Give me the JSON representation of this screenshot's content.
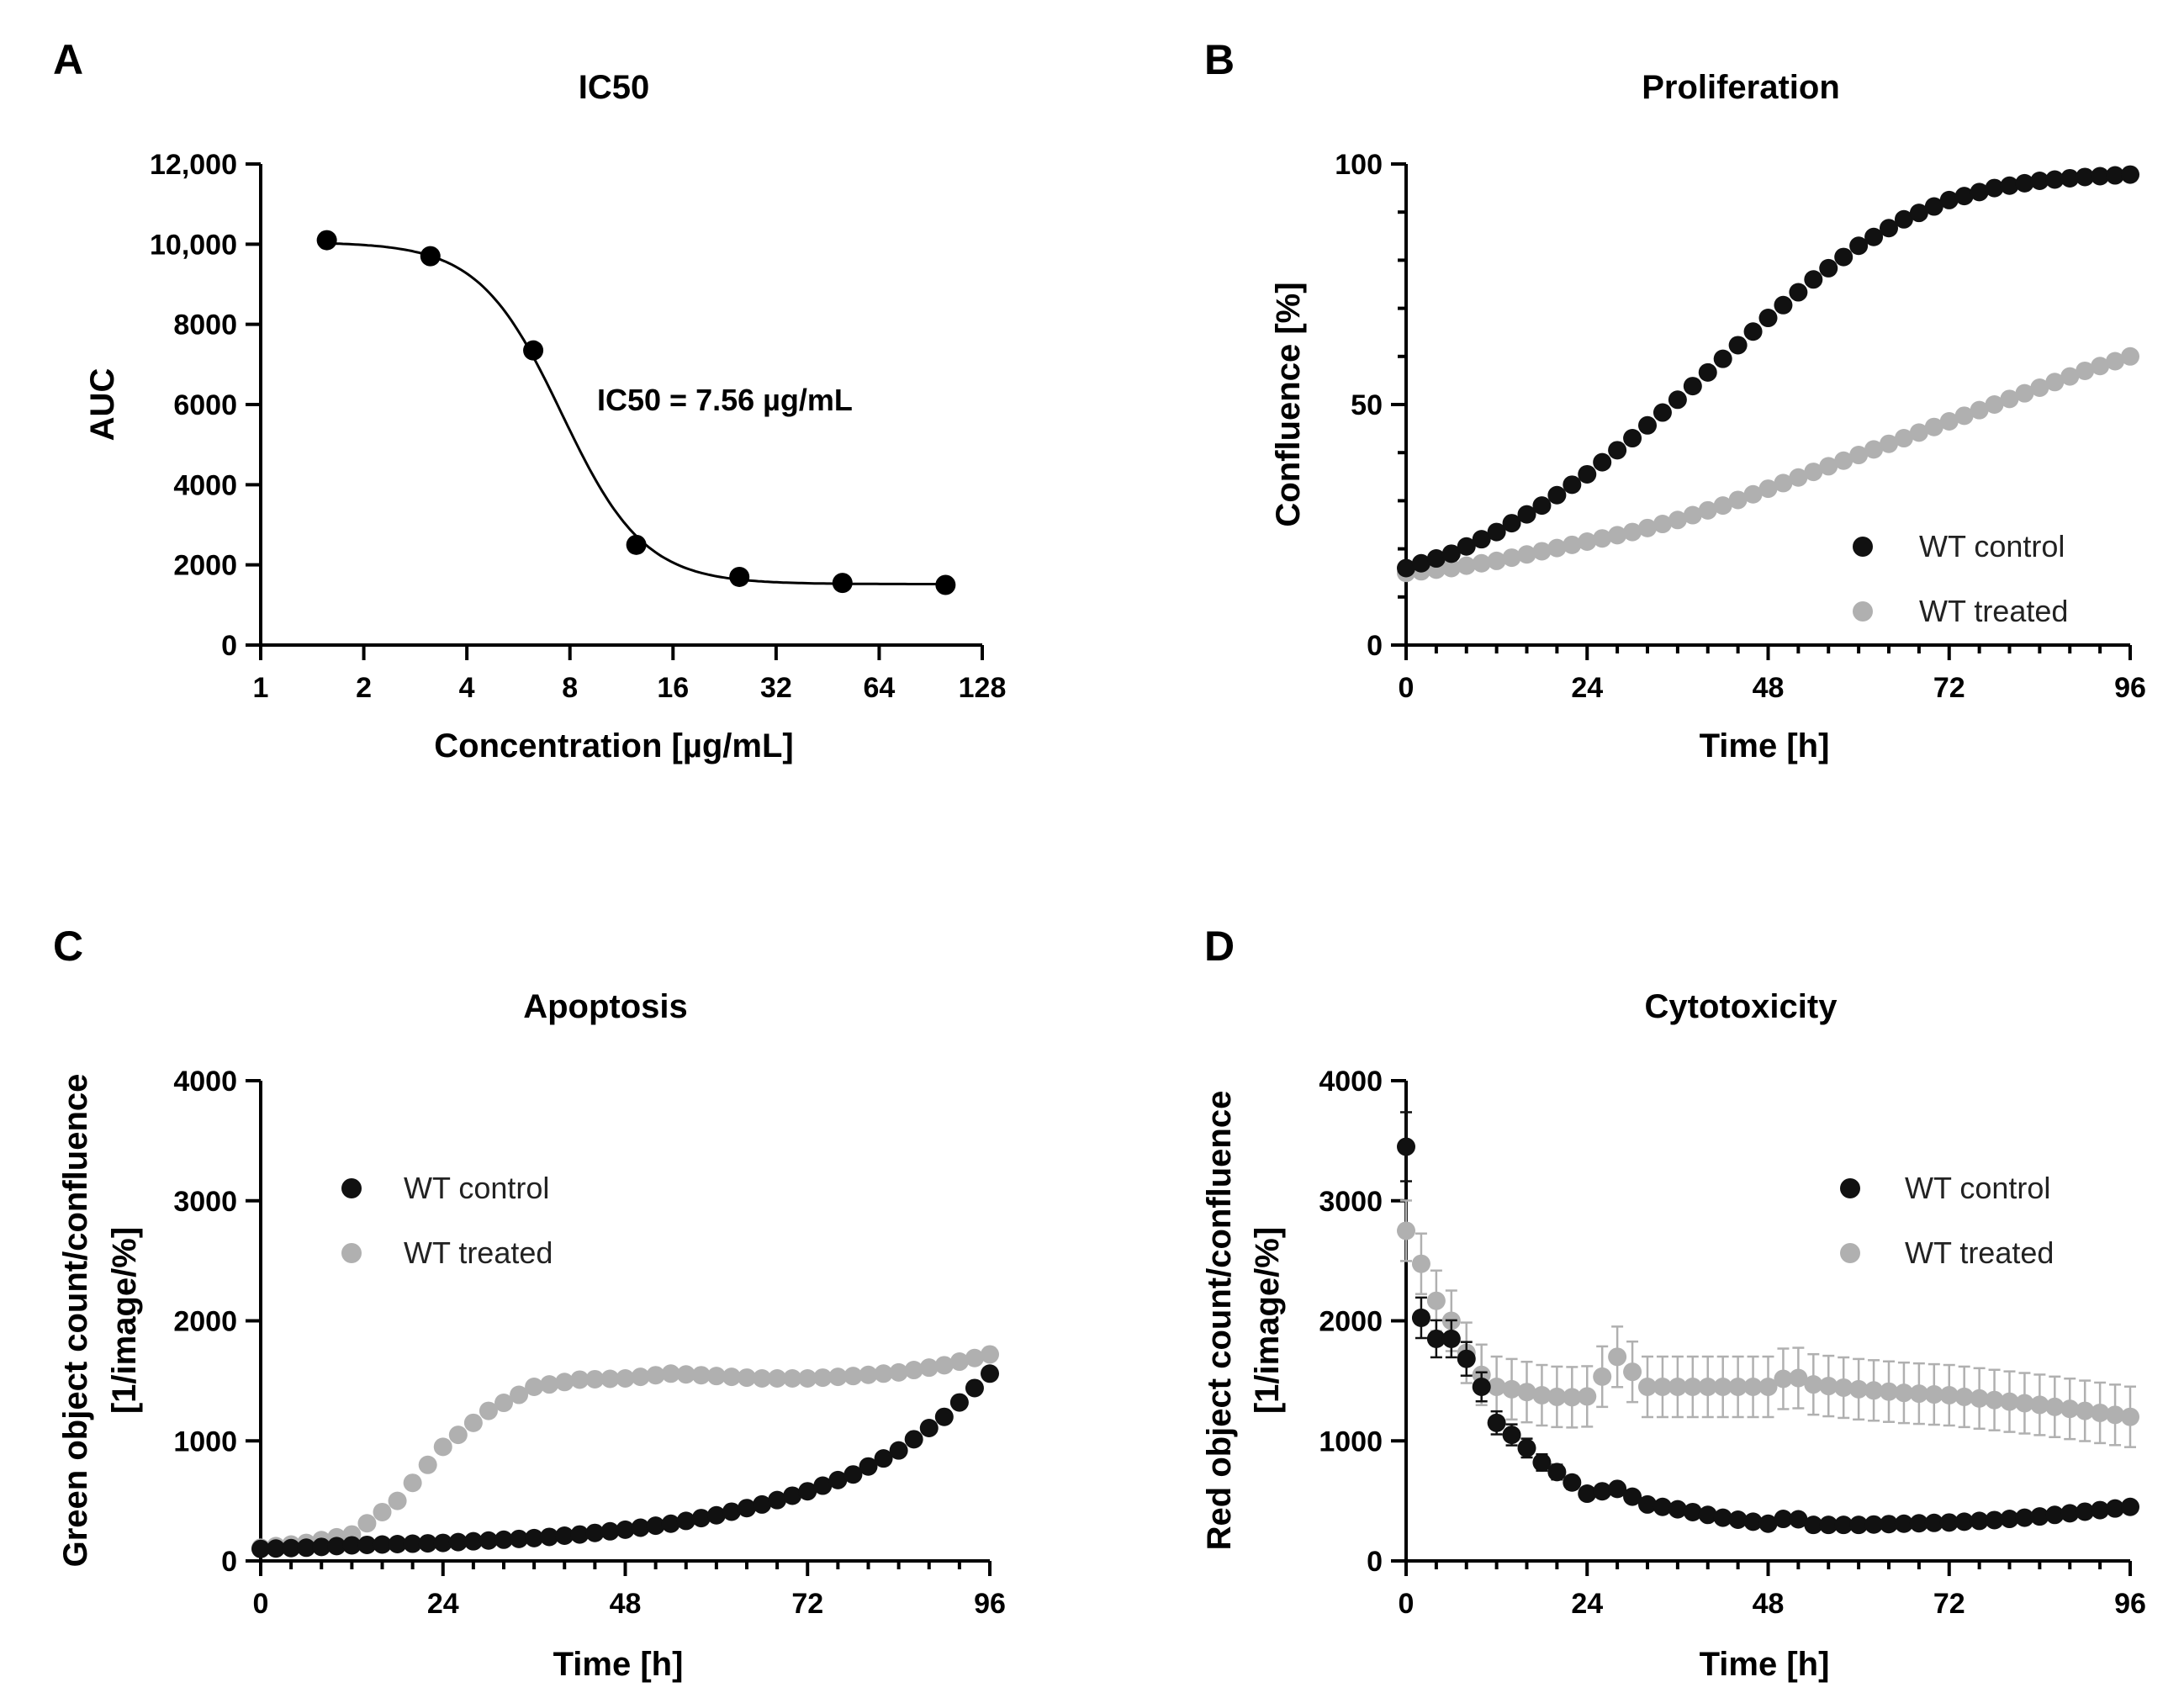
{
  "chart_data": [
    {
      "id": "A",
      "type": "scatter",
      "panel_label": "A",
      "title": "IC50",
      "xlabel": "Concentration [µg/mL]",
      "ylabel": "AUC",
      "xscale": "log2",
      "xlim": [
        1,
        128
      ],
      "ylim": [
        0,
        12000
      ],
      "xticks": [
        1,
        2,
        4,
        8,
        16,
        32,
        64,
        128
      ],
      "xtick_labels": [
        "1",
        "2",
        "4",
        "8",
        "16",
        "32",
        "64",
        "128"
      ],
      "yticks": [
        0,
        2000,
        4000,
        6000,
        8000,
        10000,
        12000
      ],
      "ytick_labels": [
        "0",
        "2000",
        "4000",
        "6000",
        "8000",
        "10,000",
        "12,000"
      ],
      "annotation": "IC50 = 7.56 µg/mL",
      "points": {
        "x": [
          1.56,
          3.13,
          6.25,
          12.5,
          25,
          50,
          100
        ],
        "y": [
          10100,
          9700,
          7350,
          2500,
          1700,
          1550,
          1500
        ]
      },
      "fit": {
        "model": "4PL",
        "top": 10050,
        "bottom": 1520,
        "ic50": 7.56,
        "hill": 3.6
      }
    },
    {
      "id": "B",
      "type": "scatter",
      "panel_label": "B",
      "title": "Proliferation",
      "xlabel": "Time [h]",
      "ylabel": "Confluence [%]",
      "xlim": [
        0,
        96
      ],
      "ylim": [
        0,
        100
      ],
      "xticks": [
        0,
        24,
        48,
        72,
        96
      ],
      "xtick_labels": [
        "0",
        "24",
        "48",
        "72",
        "96"
      ],
      "yticks": [
        0,
        50,
        100
      ],
      "ytick_labels": [
        "0",
        "50",
        "100"
      ],
      "legend_position": "bottom-right",
      "series": [
        {
          "name": "WT control",
          "color": "#111111",
          "x": [
            0,
            6,
            12,
            18,
            24,
            30,
            36,
            42,
            48,
            54,
            60,
            66,
            72,
            78,
            84,
            90,
            96
          ],
          "y": [
            16,
            19,
            23.5,
            29,
            35.5,
            43,
            51,
            59.5,
            68,
            76,
            83,
            88.5,
            92.5,
            95,
            96.5,
            97.3,
            97.8
          ],
          "err": 1.5
        },
        {
          "name": "WT treated",
          "color": "#b0b0b0",
          "x": [
            0,
            6,
            12,
            18,
            24,
            30,
            36,
            42,
            48,
            54,
            60,
            66,
            72,
            78,
            84,
            90,
            96
          ],
          "y": [
            15,
            16,
            17.5,
            19.5,
            21.5,
            23.5,
            26,
            29,
            32.5,
            36,
            39.5,
            43,
            46.5,
            50,
            53.5,
            57,
            60
          ],
          "err": 1.5
        }
      ]
    },
    {
      "id": "C",
      "type": "scatter",
      "panel_label": "C",
      "title": "Apoptosis",
      "xlabel": "Time [h]",
      "ylabel_lines": [
        "Green object count/confluence",
        "[1/image/%]"
      ],
      "xlim": [
        0,
        96
      ],
      "ylim": [
        0,
        4000
      ],
      "xticks": [
        0,
        24,
        48,
        72,
        96
      ],
      "xtick_labels": [
        "0",
        "24",
        "48",
        "72",
        "96"
      ],
      "yticks": [
        0,
        1000,
        2000,
        3000,
        4000
      ],
      "ytick_labels": [
        "0",
        "1000",
        "2000",
        "3000",
        "4000"
      ],
      "legend_position": "top-left",
      "series": [
        {
          "name": "WT control",
          "color": "#111111",
          "x": [
            0,
            6,
            12,
            18,
            24,
            30,
            36,
            42,
            48,
            54,
            60,
            66,
            72,
            78,
            84,
            90,
            96
          ],
          "y": [
            100,
            110,
            130,
            140,
            150,
            170,
            190,
            220,
            260,
            310,
            380,
            470,
            580,
            720,
            920,
            1200,
            1560
          ],
          "err": 0
        },
        {
          "name": "WT treated",
          "color": "#b0b0b0",
          "x": [
            0,
            6,
            12,
            18,
            24,
            30,
            36,
            42,
            48,
            54,
            60,
            66,
            72,
            78,
            84,
            90,
            96
          ],
          "y": [
            110,
            150,
            220,
            500,
            950,
            1250,
            1450,
            1510,
            1520,
            1560,
            1540,
            1520,
            1520,
            1540,
            1570,
            1630,
            1720
          ],
          "err": 0
        }
      ]
    },
    {
      "id": "D",
      "type": "scatter",
      "panel_label": "D",
      "title": "Cytotoxicity",
      "xlabel": "Time [h]",
      "ylabel_lines": [
        "Red object count/confluence",
        "[1/image/%]"
      ],
      "xlim": [
        0,
        96
      ],
      "ylim": [
        0,
        4000
      ],
      "xticks": [
        0,
        24,
        48,
        72,
        96
      ],
      "xtick_labels": [
        "0",
        "24",
        "48",
        "72",
        "96"
      ],
      "yticks": [
        0,
        1000,
        2000,
        3000,
        4000
      ],
      "ytick_labels": [
        "0",
        "1000",
        "2000",
        "3000",
        "4000"
      ],
      "legend_position": "top-right",
      "series": [
        {
          "name": "WT control",
          "color": "#111111",
          "x": [
            0,
            1,
            3,
            6,
            9,
            12,
            15,
            18,
            21,
            24,
            28,
            32,
            36,
            42,
            48,
            51,
            54,
            60,
            66,
            72,
            78,
            84,
            90,
            96
          ],
          "y": [
            3450,
            2200,
            1850,
            1850,
            1600,
            1150,
            1000,
            820,
            700,
            560,
            600,
            470,
            430,
            360,
            310,
            370,
            300,
            300,
            310,
            320,
            340,
            370,
            410,
            450
          ],
          "err": 250
        },
        {
          "name": "WT treated",
          "color": "#b0b0b0",
          "x": [
            0,
            1,
            3,
            6,
            9,
            12,
            15,
            18,
            21,
            24,
            28,
            32,
            36,
            42,
            48,
            51,
            54,
            60,
            66,
            72,
            78,
            84,
            90,
            96
          ],
          "y": [
            2750,
            2700,
            2250,
            2000,
            1600,
            1450,
            1420,
            1380,
            1360,
            1370,
            1700,
            1450,
            1450,
            1450,
            1450,
            1550,
            1470,
            1430,
            1400,
            1380,
            1340,
            1300,
            1250,
            1200
          ],
          "err": 280
        }
      ]
    }
  ]
}
